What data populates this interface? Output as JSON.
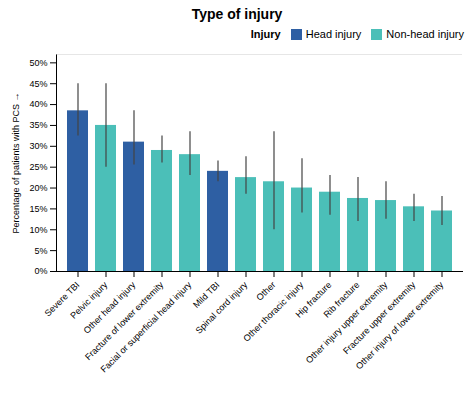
{
  "chart_data": {
    "type": "bar",
    "title": "Type of injury",
    "ylabel": "Percentage of patients with PCS",
    "categories": [
      "Severe TBI",
      "Pelvic injury",
      "Other head injury",
      "Fracture of lower extremity",
      "Facial or superficial head injury",
      "Mild TBI",
      "Spinal cord injury",
      "Other",
      "Other thoracic injury",
      "Hip fracture",
      "Rib fracture",
      "Other injury upper extremity",
      "Fracture upper extremity",
      "Other injury of lower extremity"
    ],
    "series": [
      {
        "name": "Head injury",
        "color": "#2e5fa3",
        "values": [
          38.5,
          null,
          31.0,
          null,
          null,
          24.0,
          null,
          null,
          null,
          null,
          null,
          null,
          null,
          null
        ],
        "errors_low": [
          6.0,
          null,
          5.5,
          null,
          null,
          2.5,
          null,
          null,
          null,
          null,
          null,
          null,
          null,
          null
        ],
        "errors_high": [
          6.5,
          null,
          7.5,
          null,
          null,
          2.5,
          null,
          null,
          null,
          null,
          null,
          null,
          null,
          null
        ]
      },
      {
        "name": "Non-head injury",
        "color": "#4bbfb8",
        "values": [
          null,
          35.0,
          null,
          29.0,
          28.0,
          null,
          22.5,
          21.5,
          20.0,
          19.0,
          17.5,
          17.0,
          15.5,
          14.5
        ],
        "errors_low": [
          null,
          10.0,
          null,
          3.0,
          5.0,
          null,
          4.0,
          11.5,
          6.0,
          5.5,
          5.5,
          4.5,
          3.5,
          3.5
        ],
        "errors_high": [
          null,
          10.0,
          null,
          3.5,
          5.5,
          null,
          5.0,
          12.0,
          7.0,
          4.0,
          5.0,
          4.5,
          3.0,
          3.5
        ]
      }
    ],
    "error_color": "#444444",
    "legend_title": "Injury",
    "legend": "upper right",
    "ylim": [
      0,
      52
    ],
    "yticks": [
      {
        "value": 0,
        "label": "0%"
      },
      {
        "value": 5,
        "label": "5%"
      },
      {
        "value": 10,
        "label": "10%"
      },
      {
        "value": 15,
        "label": "15%"
      },
      {
        "value": 20,
        "label": "20%"
      },
      {
        "value": 25,
        "label": "25%"
      },
      {
        "value": 30,
        "label": "30%"
      },
      {
        "value": 35,
        "label": "35%"
      },
      {
        "value": 40,
        "label": "40%"
      },
      {
        "value": 45,
        "label": "45%"
      },
      {
        "value": 50,
        "label": "50%"
      }
    ],
    "grid": false
  }
}
